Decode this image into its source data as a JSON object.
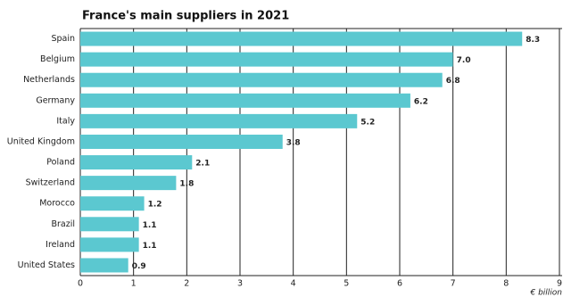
{
  "chart_data": {
    "type": "barh",
    "subtitle": "France's main suppliers in 2021",
    "x_label": "€ billion",
    "categories": [
      "Spain",
      "Belgium",
      "Netherlands",
      "Germany",
      "Italy",
      "United Kingdom",
      "Poland",
      "Switzerland",
      "Morocco",
      "Brazil",
      "Ireland",
      "United States"
    ],
    "values": [
      8.3,
      7.0,
      6.8,
      6.2,
      5.2,
      3.8,
      2.1,
      1.8,
      1.2,
      1.1,
      1.1,
      0.9
    ],
    "value_labels": [
      "8.3",
      "7.0",
      "6.8",
      "6.2",
      "5.2",
      "3.8",
      "2.1",
      "1.8",
      "1.2",
      "1.1",
      "1.1",
      "0.9"
    ],
    "color": "#5bc8d0",
    "xlim": [
      0,
      9
    ],
    "xticks": [
      0,
      1,
      2,
      3,
      4,
      5,
      6,
      7,
      8,
      9
    ],
    "grid": true
  }
}
